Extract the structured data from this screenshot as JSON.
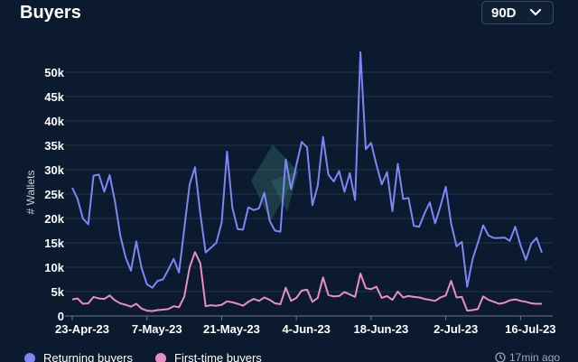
{
  "header": {
    "title": "Buyers",
    "range_selected": "90D"
  },
  "footer": {
    "updated": "17min ago"
  },
  "colors": {
    "background": "#0b1a2e",
    "returning": "#7c86f4",
    "first_time": "#e98fc0",
    "grid": "#26364a",
    "axis": "#6b7686"
  },
  "icons": {
    "dropdown": "chevron-down-icon",
    "updated": "clock-icon",
    "watermark": "logo-watermark"
  },
  "chart_data": {
    "type": "line",
    "title": "Buyers",
    "xlabel": "",
    "ylabel": "# Wallets",
    "ylim": [
      0,
      55000
    ],
    "yticks": [
      0,
      5000,
      10000,
      15000,
      20000,
      25000,
      30000,
      35000,
      40000,
      45000,
      50000
    ],
    "ytick_labels": [
      "0",
      "5k",
      "10k",
      "15k",
      "20k",
      "25k",
      "30k",
      "35k",
      "40k",
      "45k",
      "50k"
    ],
    "x_start": "2023-04-23",
    "x_tick_indices": [
      0,
      14,
      28,
      42,
      56,
      70,
      84
    ],
    "x_tick_labels": [
      "23-Apr-23",
      "7-May-23",
      "21-May-23",
      "4-Jun-23",
      "18-Jun-23",
      "2-Jul-23",
      "16-Jul-23"
    ],
    "legend": "bottom",
    "series": [
      {
        "name": "Returning buyers",
        "color": "#7c86f4",
        "values": [
          26300,
          24000,
          20000,
          18800,
          28800,
          29000,
          25500,
          28900,
          23500,
          16500,
          12000,
          9300,
          15300,
          9800,
          6500,
          5800,
          7200,
          7500,
          9500,
          11700,
          8900,
          18000,
          27000,
          30500,
          21000,
          13000,
          14000,
          15000,
          19200,
          33700,
          22200,
          17800,
          17700,
          22300,
          21700,
          22100,
          25300,
          19500,
          17500,
          17300,
          32100,
          26000,
          31000,
          35700,
          34600,
          22700,
          26700,
          36700,
          29000,
          27600,
          29700,
          25500,
          29300,
          23800,
          54100,
          34200,
          35500,
          31000,
          27000,
          29500,
          21500,
          31200,
          24000,
          24200,
          18500,
          18300,
          21000,
          23300,
          19000,
          22500,
          26500,
          19000,
          14300,
          15200,
          6000,
          11600,
          15000,
          18600,
          16500,
          16000,
          16000,
          16100,
          15400,
          18300,
          14500,
          11500,
          14800,
          16000,
          13000
        ]
      },
      {
        "name": "First-time buyers",
        "color": "#e98fc0",
        "values": [
          3400,
          3600,
          2500,
          2600,
          3900,
          3600,
          3500,
          4200,
          3200,
          2600,
          2300,
          1900,
          2500,
          1500,
          1100,
          1000,
          1200,
          1300,
          1400,
          2000,
          1800,
          4000,
          10000,
          13100,
          10800,
          2000,
          2200,
          2100,
          2300,
          3000,
          2800,
          2500,
          2100,
          2900,
          3500,
          3100,
          3800,
          3300,
          2600,
          2400,
          5800,
          3100,
          3700,
          5200,
          5400,
          2900,
          3700,
          7900,
          4300,
          4000,
          4100,
          4900,
          4400,
          3900,
          8700,
          5700,
          5500,
          6000,
          3700,
          4100,
          3300,
          5000,
          3800,
          4100,
          3900,
          3800,
          3500,
          3300,
          3100,
          3800,
          4200,
          7200,
          3800,
          3900,
          1100,
          1200,
          1400,
          4000,
          3300,
          2900,
          2500,
          2700,
          3200,
          3400,
          3100,
          2900,
          2600,
          2500,
          2500
        ]
      }
    ]
  }
}
